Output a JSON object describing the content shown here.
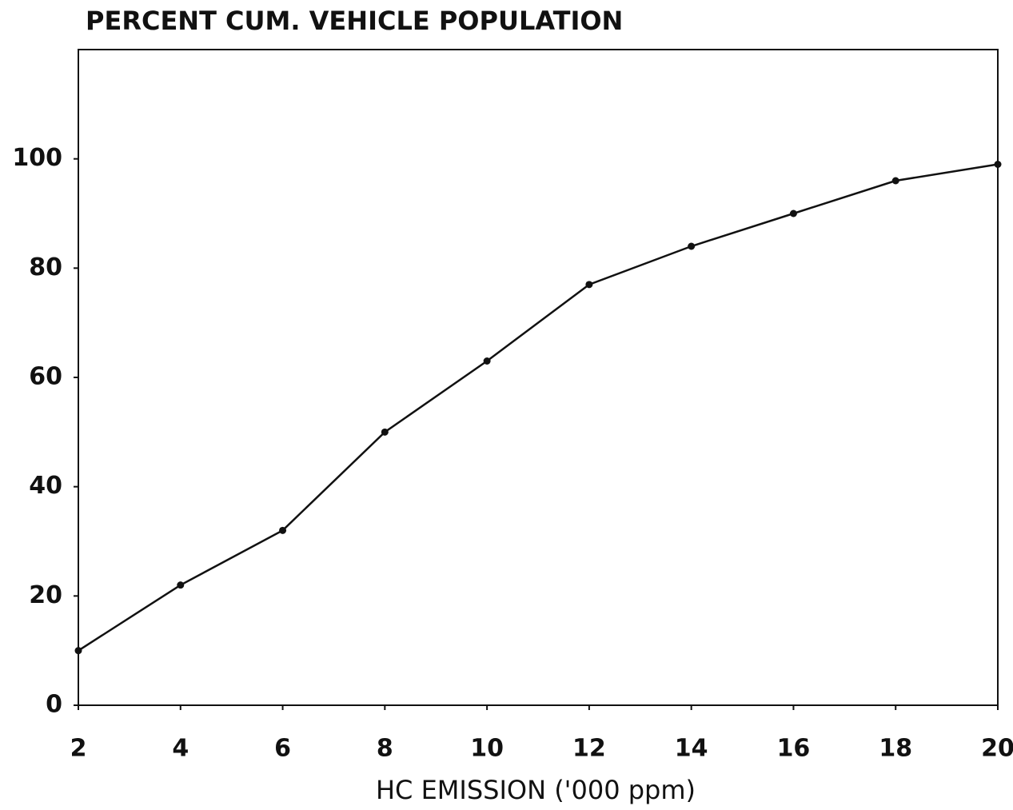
{
  "chart_data": {
    "type": "line",
    "title": "PERCENT CUM. VEHICLE POPULATION",
    "x_label": "HC EMISSION ('000 ppm)",
    "x": [
      2,
      4,
      6,
      8,
      10,
      12,
      14,
      16,
      18,
      20
    ],
    "series": [
      {
        "color": "#111111",
        "values": [
          10,
          22,
          32,
          50,
          63,
          77,
          84,
          90,
          96,
          99
        ]
      }
    ],
    "xlim": [
      2,
      20
    ],
    "xticks": [
      2,
      4,
      6,
      8,
      10,
      12,
      14,
      16,
      18,
      20
    ],
    "ylim": [
      0,
      120
    ],
    "yticks": [
      0,
      20,
      40,
      60,
      80,
      100
    ],
    "grid": false
  }
}
